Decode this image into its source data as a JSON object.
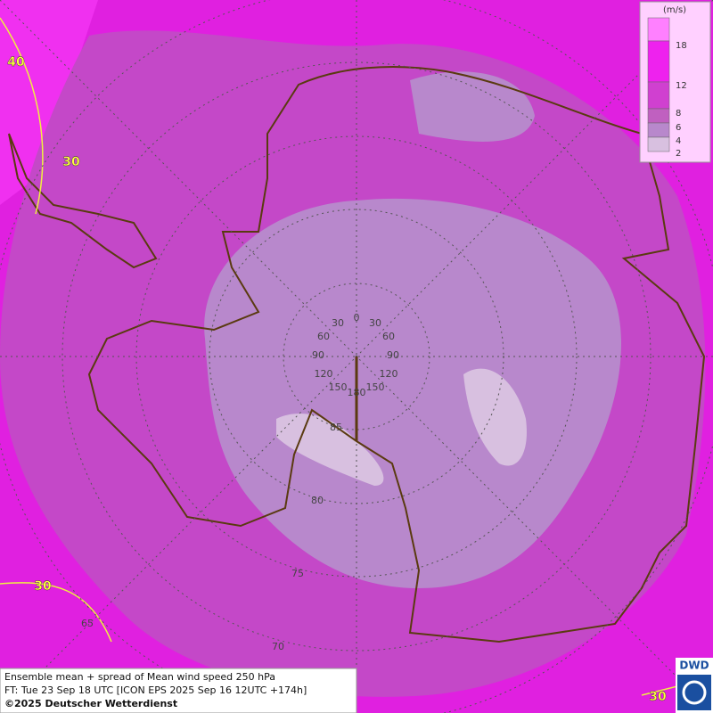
{
  "legend": {
    "unit": "(m/s)",
    "levels": [
      "18",
      "12",
      "8",
      "6",
      "4",
      "2"
    ]
  },
  "graticule_labels": [
    "0",
    "30",
    "30",
    "60",
    "60",
    "90",
    "90",
    "120",
    "120",
    "150",
    "150",
    "180",
    "85",
    "80",
    "75",
    "70",
    "65"
  ],
  "contour_labels": [
    "40",
    "30",
    "30",
    "30"
  ],
  "caption": [
    "Ensemble mean + spread of Mean wind speed 250 hPa",
    "FT: Tue 23 Sep 18 UTC [ICON EPS 2025 Sep 16 12UTC +174h]",
    "©2025 Deutscher Wetterdienst"
  ],
  "logo": "DWD"
}
